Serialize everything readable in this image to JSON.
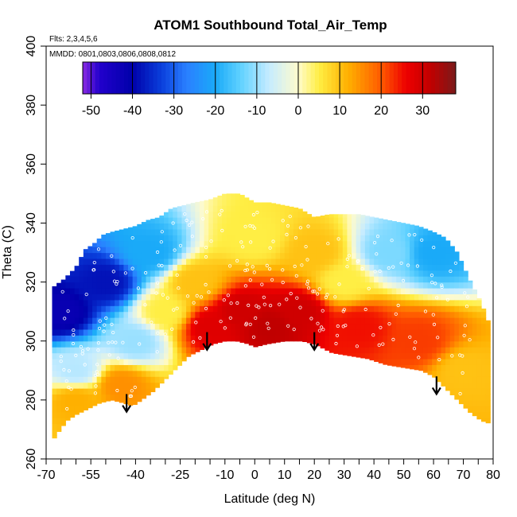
{
  "chart_data": {
    "type": "heatmap",
    "title": "ATOM1 Southbound Total_Air_Temp",
    "annotations": {
      "flights": "Flts: 2,3,4,5,6",
      "dates": "MMDD: 0801,0803,0806,0808,0812"
    },
    "xlabel": "Latitude (deg N)",
    "ylabel": "Theta (C)",
    "xlim": [
      -70,
      80
    ],
    "ylim": [
      260,
      400
    ],
    "x_ticks_labeled": [
      -70,
      -55,
      -40,
      -25,
      -10,
      0,
      10,
      20,
      30,
      40,
      50,
      60,
      70,
      80
    ],
    "x_ticks_minor": [
      -65,
      -60,
      -50,
      -45,
      -35,
      -30,
      -20,
      -15,
      -5,
      5,
      15,
      25,
      35,
      45,
      55,
      65,
      75
    ],
    "y_ticks": [
      260,
      280,
      300,
      320,
      340,
      360,
      380,
      400
    ],
    "colorbar": {
      "min": -52,
      "max": 38,
      "tick_values": [
        -50,
        -40,
        -30,
        -20,
        -10,
        0,
        10,
        20,
        30
      ],
      "tick_labels": [
        "-50",
        "-40",
        "-30",
        "-20",
        "-10",
        "0",
        "10",
        "20",
        "30"
      ],
      "color_stops": [
        {
          "value": -52,
          "color": "#8a2be2"
        },
        {
          "value": -48,
          "color": "#2200cc"
        },
        {
          "value": -40,
          "color": "#0000aa"
        },
        {
          "value": -33,
          "color": "#0a3fdc"
        },
        {
          "value": -27,
          "color": "#2a7fff"
        },
        {
          "value": -20,
          "color": "#1aaaf8"
        },
        {
          "value": -14,
          "color": "#5fd1ff"
        },
        {
          "value": -7,
          "color": "#c6ecff"
        },
        {
          "value": 0,
          "color": "#fffbcc"
        },
        {
          "value": 5,
          "color": "#ffee44"
        },
        {
          "value": 12,
          "color": "#ffb000"
        },
        {
          "value": 20,
          "color": "#ff5a00"
        },
        {
          "value": 26,
          "color": "#ee0000"
        },
        {
          "value": 32,
          "color": "#c00000"
        },
        {
          "value": 38,
          "color": "#7a1a1a"
        }
      ]
    },
    "top_boundary": [
      [
        -68,
        318
      ],
      [
        -64,
        321
      ],
      [
        -60,
        325
      ],
      [
        -57,
        331
      ],
      [
        -54,
        333
      ],
      [
        -51,
        336
      ],
      [
        -48,
        337
      ],
      [
        -44,
        338
      ],
      [
        -40,
        339
      ],
      [
        -36,
        341
      ],
      [
        -32,
        342
      ],
      [
        -28,
        345
      ],
      [
        -24,
        346
      ],
      [
        -20,
        347
      ],
      [
        -15,
        348
      ],
      [
        -10,
        350
      ],
      [
        -5,
        350
      ],
      [
        0,
        347
      ],
      [
        5,
        347
      ],
      [
        10,
        346
      ],
      [
        15,
        345
      ],
      [
        20,
        342
      ],
      [
        25,
        343
      ],
      [
        30,
        343
      ],
      [
        35,
        343
      ],
      [
        40,
        342
      ],
      [
        45,
        341
      ],
      [
        50,
        340
      ],
      [
        55,
        339
      ],
      [
        60,
        337
      ],
      [
        64,
        335
      ],
      [
        68,
        330
      ],
      [
        72,
        321
      ],
      [
        76,
        313
      ],
      [
        79,
        305
      ]
    ],
    "bottom_boundary": [
      [
        -68,
        266
      ],
      [
        -66,
        269
      ],
      [
        -63,
        273
      ],
      [
        -60,
        275
      ],
      [
        -56,
        277
      ],
      [
        -52,
        279
      ],
      [
        -48,
        280
      ],
      [
        -44,
        279
      ],
      [
        -41,
        278
      ],
      [
        -38,
        280
      ],
      [
        -34,
        283
      ],
      [
        -30,
        287
      ],
      [
        -26,
        291
      ],
      [
        -22,
        295
      ],
      [
        -18,
        297
      ],
      [
        -14,
        299
      ],
      [
        -10,
        300
      ],
      [
        -6,
        300
      ],
      [
        -2,
        299
      ],
      [
        0,
        298
      ],
      [
        4,
        299
      ],
      [
        10,
        300
      ],
      [
        16,
        300
      ],
      [
        20,
        299
      ],
      [
        26,
        296
      ],
      [
        32,
        295
      ],
      [
        38,
        294
      ],
      [
        44,
        292
      ],
      [
        50,
        291
      ],
      [
        56,
        290
      ],
      [
        60,
        288
      ],
      [
        64,
        284
      ],
      [
        68,
        280
      ],
      [
        72,
        276
      ],
      [
        76,
        273
      ],
      [
        79,
        272
      ]
    ],
    "temperature_field_samples": [
      {
        "lat": -65,
        "theta": 310,
        "temp": -42
      },
      {
        "lat": -60,
        "theta": 290,
        "temp": -8
      },
      {
        "lat": -60,
        "theta": 280,
        "temp": 12
      },
      {
        "lat": -50,
        "theta": 320,
        "temp": -38
      },
      {
        "lat": -45,
        "theta": 285,
        "temp": 15
      },
      {
        "lat": -40,
        "theta": 300,
        "temp": -10
      },
      {
        "lat": -35,
        "theta": 330,
        "temp": -20
      },
      {
        "lat": -30,
        "theta": 310,
        "temp": 5
      },
      {
        "lat": -20,
        "theta": 320,
        "temp": 10
      },
      {
        "lat": -15,
        "theta": 305,
        "temp": 28
      },
      {
        "lat": -5,
        "theta": 310,
        "temp": 30
      },
      {
        "lat": 0,
        "theta": 335,
        "temp": 5
      },
      {
        "lat": 5,
        "theta": 305,
        "temp": 32
      },
      {
        "lat": 15,
        "theta": 310,
        "temp": 30
      },
      {
        "lat": 20,
        "theta": 330,
        "temp": 10
      },
      {
        "lat": 30,
        "theta": 320,
        "temp": 5
      },
      {
        "lat": 35,
        "theta": 305,
        "temp": 25
      },
      {
        "lat": 45,
        "theta": 330,
        "temp": -12
      },
      {
        "lat": 55,
        "theta": 300,
        "temp": 22
      },
      {
        "lat": 60,
        "theta": 330,
        "temp": -20
      },
      {
        "lat": 70,
        "theta": 290,
        "temp": 10
      }
    ],
    "arrows": [
      {
        "lat": -43,
        "theta_top": 282,
        "theta_tip": 276
      },
      {
        "lat": -16,
        "theta_top": 303,
        "theta_tip": 297
      },
      {
        "lat": 20,
        "theta_top": 303,
        "theta_tip": 297
      },
      {
        "lat": 61,
        "theta_top": 288,
        "theta_tip": 282
      }
    ]
  }
}
